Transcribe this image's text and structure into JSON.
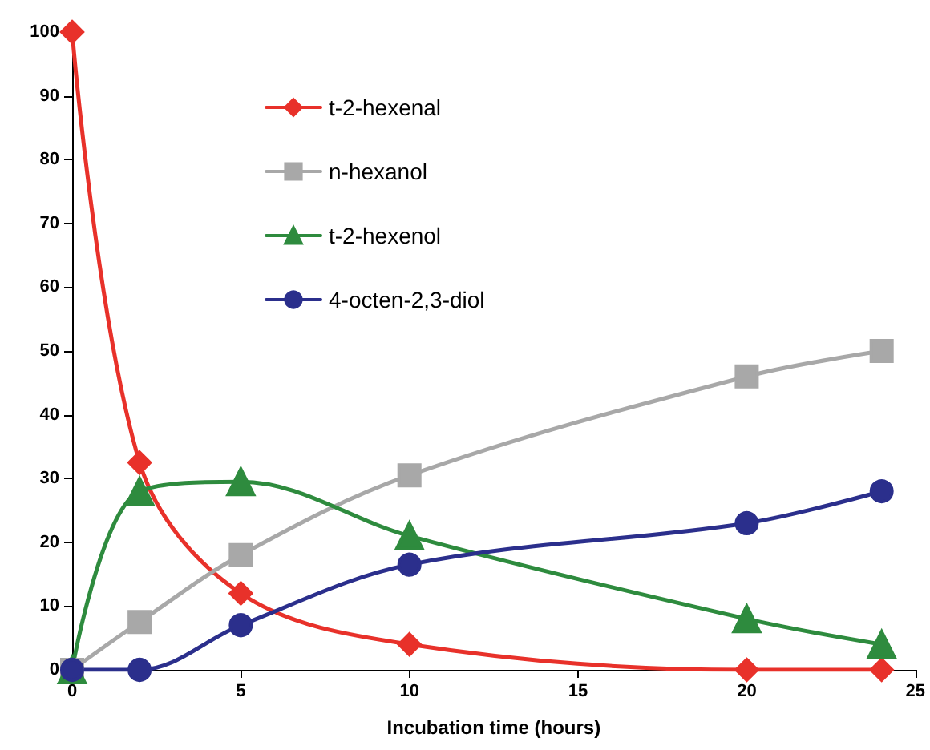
{
  "chart_data": {
    "type": "line",
    "xlabel": "Incubation time (hours)",
    "xlim": [
      0,
      25
    ],
    "xticks": [
      0,
      5,
      10,
      15,
      20,
      25
    ],
    "ylim": [
      0,
      100
    ],
    "yticks": [
      0,
      10,
      20,
      30,
      40,
      50,
      60,
      70,
      80,
      90,
      100
    ],
    "grid": false,
    "legend": "top left",
    "line_style": "solid",
    "series": [
      {
        "name": "t-2-hexenal",
        "color": "#e8312a",
        "marker": "diamond",
        "x": [
          0,
          2,
          5,
          10,
          20,
          24
        ],
        "values": [
          100,
          32.5,
          12,
          4,
          0,
          0
        ]
      },
      {
        "name": "n-hexanol",
        "color": "#a8a8a8",
        "marker": "square",
        "x": [
          0,
          2,
          5,
          10,
          20,
          24
        ],
        "values": [
          0,
          7.5,
          18,
          30.5,
          46,
          50
        ]
      },
      {
        "name": "t-2-hexenol",
        "color": "#2e8b3e",
        "marker": "triangle",
        "x": [
          0,
          2,
          5,
          10,
          20,
          24
        ],
        "values": [
          0,
          28,
          29.5,
          21,
          8,
          4
        ]
      },
      {
        "name": "4-octen-2,3-diol",
        "color": "#2b2f8c",
        "marker": "circle",
        "x": [
          0,
          2,
          5,
          10,
          20,
          24
        ],
        "values": [
          0,
          0,
          7,
          16.5,
          23,
          28
        ]
      }
    ]
  }
}
